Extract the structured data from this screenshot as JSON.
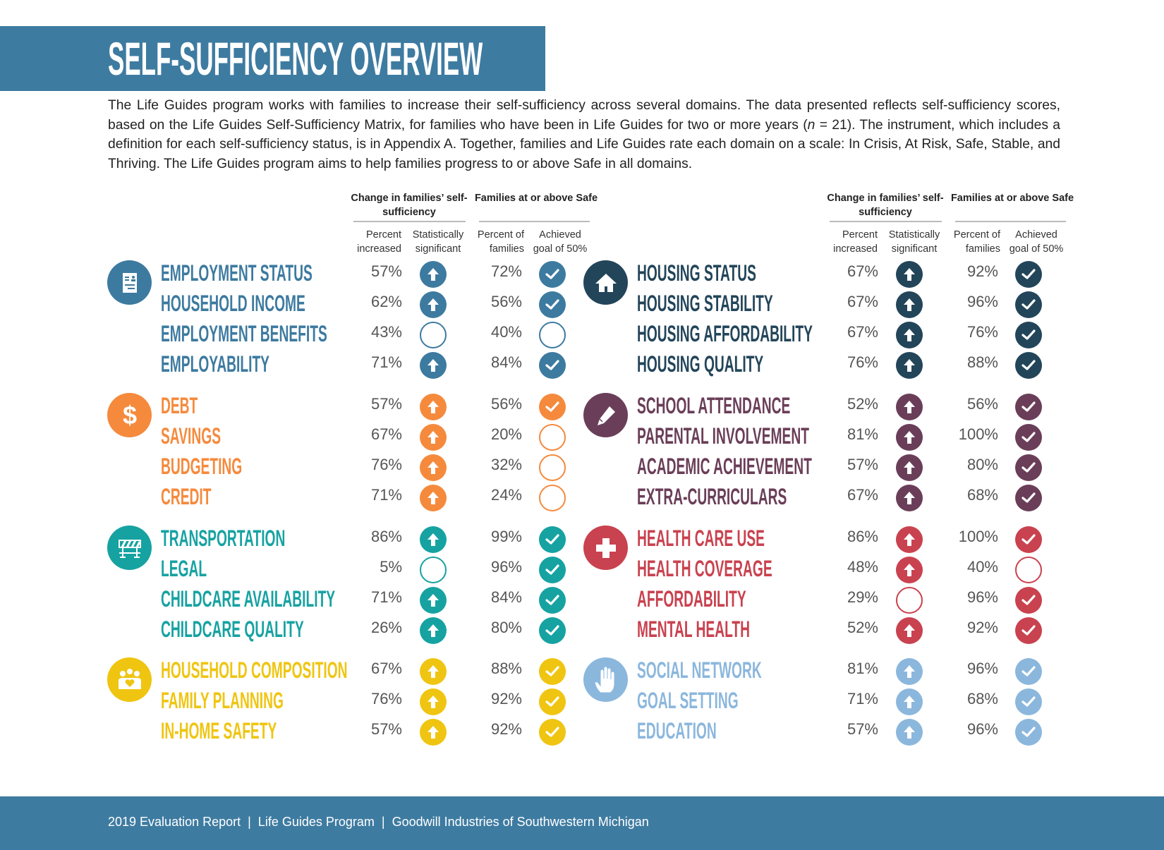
{
  "title": "SELF-SUFFICIENCY OVERVIEW",
  "intro": {
    "before_n": "The Life Guides program works with families to increase their self-sufficiency across several domains. The data presented reflects self-sufficiency scores, based on the Life Guides Self-Sufficiency Matrix, for families who have been in Life Guides for two or more years (",
    "n": "n",
    "after_n": " = 21). The instrument, which includes a definition for each self-sufficiency status, is in Appendix A. Together, families and Life Guides rate each domain on a scale: In Crisis, At Risk, Safe, Stable, and Thriving. The Life Guides program aims to help families progress to or above Safe in all domains."
  },
  "headers": {
    "change": "Change in families’ self-sufficiency",
    "safe": "Families at or above Safe",
    "percent_increased": "Percent increased",
    "statistically_significant": "Statistically significant",
    "percent_of_families": "Percent of families",
    "achieved_goal": "Achieved goal of 50%"
  },
  "columns": [
    {
      "groups": [
        {
          "icon": "document-icon",
          "color": "#3d7aa0",
          "items": [
            {
              "label": "EMPLOYMENT STATUS",
              "pct_increased": "57%",
              "significant": true,
              "pct_safe": "72%",
              "achieved": true
            },
            {
              "label": "HOUSEHOLD INCOME",
              "pct_increased": "62%",
              "significant": true,
              "pct_safe": "56%",
              "achieved": true
            },
            {
              "label": "EMPLOYMENT BENEFITS",
              "pct_increased": "43%",
              "significant": false,
              "pct_safe": "40%",
              "achieved": false
            },
            {
              "label": "EMPLOYABILITY",
              "pct_increased": "71%",
              "significant": true,
              "pct_safe": "84%",
              "achieved": true
            }
          ]
        },
        {
          "icon": "dollar-icon",
          "color": "#f58a3d",
          "items": [
            {
              "label": "DEBT",
              "pct_increased": "57%",
              "significant": true,
              "pct_safe": "56%",
              "achieved": true
            },
            {
              "label": "SAVINGS",
              "pct_increased": "67%",
              "significant": true,
              "pct_safe": "20%",
              "achieved": false
            },
            {
              "label": "BUDGETING",
              "pct_increased": "76%",
              "significant": true,
              "pct_safe": "32%",
              "achieved": false
            },
            {
              "label": "CREDIT",
              "pct_increased": "71%",
              "significant": true,
              "pct_safe": "24%",
              "achieved": false
            }
          ]
        },
        {
          "icon": "barrier-icon",
          "color": "#17a2a2",
          "items": [
            {
              "label": "TRANSPORTATION",
              "pct_increased": "86%",
              "significant": true,
              "pct_safe": "99%",
              "achieved": true
            },
            {
              "label": "LEGAL",
              "pct_increased": "5%",
              "significant": false,
              "pct_safe": "96%",
              "achieved": true
            },
            {
              "label": "CHILDCARE AVAILABILITY",
              "pct_increased": "71%",
              "significant": true,
              "pct_safe": "84%",
              "achieved": true
            },
            {
              "label": "CHILDCARE QUALITY",
              "pct_increased": "26%",
              "significant": true,
              "pct_safe": "80%",
              "achieved": true
            }
          ]
        },
        {
          "icon": "family-icon",
          "color": "#efc511",
          "items": [
            {
              "label": "HOUSEHOLD COMPOSITION",
              "pct_increased": "67%",
              "significant": true,
              "pct_safe": "88%",
              "achieved": true
            },
            {
              "label": "FAMILY PLANNING",
              "pct_increased": "76%",
              "significant": true,
              "pct_safe": "92%",
              "achieved": true
            },
            {
              "label": "IN-HOME SAFETY",
              "pct_increased": "57%",
              "significant": true,
              "pct_safe": "92%",
              "achieved": true
            }
          ]
        }
      ]
    },
    {
      "groups": [
        {
          "icon": "house-icon",
          "color": "#23455a",
          "items": [
            {
              "label": "HOUSING STATUS",
              "pct_increased": "67%",
              "significant": true,
              "pct_safe": "92%",
              "achieved": true
            },
            {
              "label": "HOUSING STABILITY",
              "pct_increased": "67%",
              "significant": true,
              "pct_safe": "96%",
              "achieved": true
            },
            {
              "label": "HOUSING AFFORDABILITY",
              "pct_increased": "67%",
              "significant": true,
              "pct_safe": "76%",
              "achieved": true
            },
            {
              "label": "HOUSING QUALITY",
              "pct_increased": "76%",
              "significant": true,
              "pct_safe": "88%",
              "achieved": true
            }
          ]
        },
        {
          "icon": "pencil-icon",
          "color": "#6a3e58",
          "items": [
            {
              "label": "SCHOOL ATTENDANCE",
              "pct_increased": "52%",
              "significant": true,
              "pct_safe": "56%",
              "achieved": true
            },
            {
              "label": "PARENTAL INVOLVEMENT",
              "pct_increased": "81%",
              "significant": true,
              "pct_safe": "100%",
              "achieved": true
            },
            {
              "label": "ACADEMIC ACHIEVEMENT",
              "pct_increased": "57%",
              "significant": true,
              "pct_safe": "80%",
              "achieved": true
            },
            {
              "label": "EXTRA-CURRICULARS",
              "pct_increased": "67%",
              "significant": true,
              "pct_safe": "68%",
              "achieved": true
            }
          ]
        },
        {
          "icon": "medical-cross-icon",
          "color": "#c9424f",
          "items": [
            {
              "label": "HEALTH CARE USE",
              "pct_increased": "86%",
              "significant": true,
              "pct_safe": "100%",
              "achieved": true
            },
            {
              "label": "HEALTH COVERAGE",
              "pct_increased": "48%",
              "significant": true,
              "pct_safe": "40%",
              "achieved": false
            },
            {
              "label": "AFFORDABILITY",
              "pct_increased": "29%",
              "significant": false,
              "pct_safe": "96%",
              "achieved": true
            },
            {
              "label": "MENTAL HEALTH",
              "pct_increased": "52%",
              "significant": true,
              "pct_safe": "92%",
              "achieved": true
            }
          ]
        },
        {
          "icon": "hand-icon",
          "color": "#8bb7dd",
          "items": [
            {
              "label": "SOCIAL NETWORK",
              "pct_increased": "81%",
              "significant": true,
              "pct_safe": "96%",
              "achieved": true
            },
            {
              "label": "GOAL SETTING",
              "pct_increased": "71%",
              "significant": true,
              "pct_safe": "68%",
              "achieved": true
            },
            {
              "label": "EDUCATION",
              "pct_increased": "57%",
              "significant": true,
              "pct_safe": "96%",
              "achieved": true
            }
          ]
        }
      ]
    }
  ],
  "footer": "2019 Evaluation Report  |  Life Guides Program  |  Goodwill Industries of Southwestern Michigan"
}
